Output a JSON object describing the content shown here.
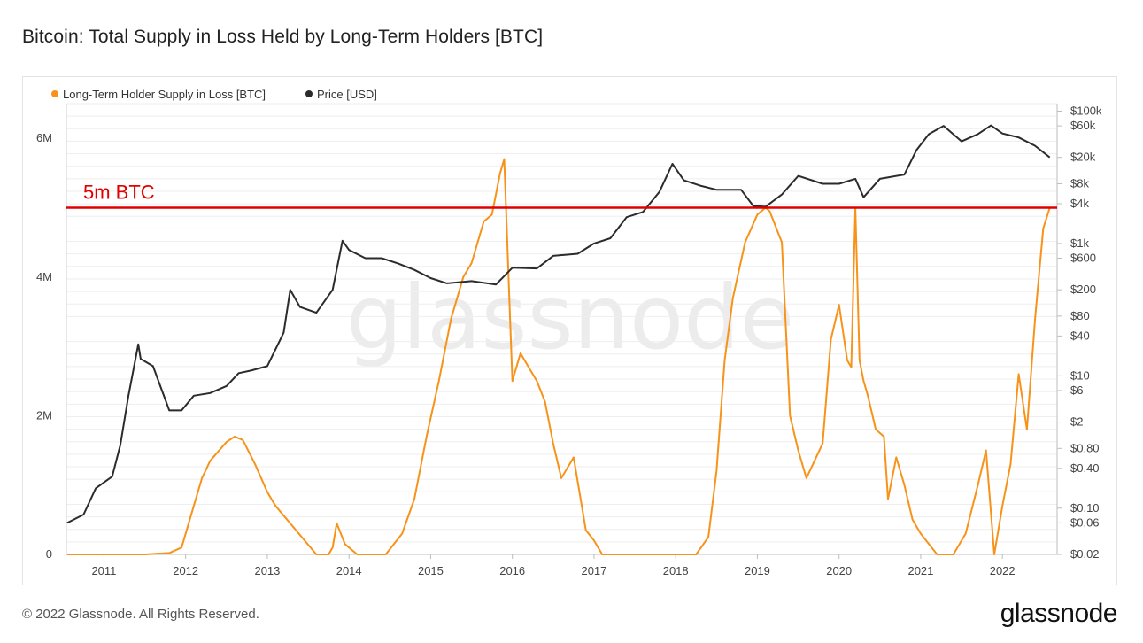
{
  "title": "Bitcoin: Total Supply in Loss Held by Long-Term Holders [BTC]",
  "footer": "© 2022 Glassnode. All Rights Reserved.",
  "brand": "glassnode",
  "watermark": "glassnode",
  "colors": {
    "supply": "#f7931a",
    "price": "#2b2b2b",
    "threshold": "#e00000",
    "grid": "#eeeeee"
  },
  "chart_data": {
    "type": "line",
    "title": "Bitcoin: Total Supply in Loss Held by Long-Term Holders [BTC]",
    "legend": [
      {
        "name": "Long-Term Holder Supply in Loss [BTC]",
        "color": "#f7931a"
      },
      {
        "name": "Price [USD]",
        "color": "#2b2b2b"
      }
    ],
    "legend_position": "top-left",
    "grid": true,
    "x_ticks": [
      "2011",
      "2012",
      "2013",
      "2014",
      "2015",
      "2016",
      "2017",
      "2018",
      "2019",
      "2020",
      "2021",
      "2022"
    ],
    "xlim": [
      "2010-07-17",
      "2022-08-31"
    ],
    "y_left": {
      "ticks": [
        "0",
        "2M",
        "4M",
        "6M"
      ],
      "ylim": [
        0,
        6500000
      ]
    },
    "y_right": {
      "scale": "log",
      "ticks": [
        "$100k",
        "$60k",
        "$20k",
        "$8k",
        "$4k",
        "$1k",
        "$600",
        "$200",
        "$80",
        "$40",
        "$10",
        "$6",
        "$2",
        "$0.80",
        "$0.40",
        "$0.10",
        "$0.06",
        "$0.02"
      ],
      "ylim": [
        0.02,
        130000
      ]
    },
    "annotation": {
      "label": "5m BTC",
      "y": 5000000
    },
    "series": [
      {
        "name": "Long-Term Holder Supply in Loss [BTC]",
        "axis": "left",
        "x": [
          2010.55,
          2011.5,
          2011.8,
          2011.95,
          2012.05,
          2012.2,
          2012.3,
          2012.5,
          2012.6,
          2012.7,
          2012.85,
          2013.0,
          2013.05,
          2013.1,
          2013.6,
          2013.75,
          2013.8,
          2013.85,
          2013.95,
          2014.1,
          2014.3,
          2014.45,
          2014.65,
          2014.8,
          2014.95,
          2015.1,
          2015.25,
          2015.4,
          2015.5,
          2015.6,
          2015.65,
          2015.75,
          2015.85,
          2015.9,
          2016.0,
          2016.1,
          2016.2,
          2016.3,
          2016.4,
          2016.5,
          2016.6,
          2016.75,
          2016.9,
          2017.0,
          2017.05,
          2017.1,
          2017.5,
          2017.9,
          2018.1,
          2018.25,
          2018.4,
          2018.5,
          2018.6,
          2018.7,
          2018.85,
          2019.0,
          2019.1,
          2019.15,
          2019.3,
          2019.4,
          2019.5,
          2019.6,
          2019.8,
          2019.9,
          2020.0,
          2020.1,
          2020.15,
          2020.2,
          2020.25,
          2020.3,
          2020.35,
          2020.45,
          2020.55,
          2020.6,
          2020.7,
          2020.8,
          2020.9,
          2021.0,
          2021.2,
          2021.4,
          2021.55,
          2021.7,
          2021.8,
          2021.9,
          2022.0,
          2022.1,
          2022.2,
          2022.3,
          2022.4,
          2022.5,
          2022.58
        ],
        "y": [
          0,
          0,
          20000,
          100000,
          500000,
          1100000,
          1350000,
          1620000,
          1700000,
          1650000,
          1300000,
          900000,
          800000,
          700000,
          0,
          0,
          100000,
          450000,
          150000,
          0,
          0,
          0,
          300000,
          800000,
          1700000,
          2500000,
          3400000,
          4000000,
          4200000,
          4600000,
          4800000,
          4900000,
          5500000,
          5700000,
          2500000,
          2900000,
          2700000,
          2500000,
          2200000,
          1600000,
          1100000,
          1400000,
          350000,
          200000,
          100000,
          0,
          0,
          0,
          0,
          0,
          250000,
          1200000,
          2800000,
          3700000,
          4500000,
          4900000,
          5000000,
          4950000,
          4500000,
          2000000,
          1500000,
          1100000,
          1600000,
          3100000,
          3600000,
          2800000,
          2700000,
          5000000,
          2800000,
          2500000,
          2300000,
          1800000,
          1700000,
          800000,
          1400000,
          1000000,
          500000,
          300000,
          0,
          0,
          300000,
          1000000,
          1500000,
          0,
          700000,
          1300000,
          2600000,
          1800000,
          3400000,
          4700000,
          5000000
        ]
      },
      {
        "name": "Price [USD]",
        "axis": "right",
        "x": [
          2010.55,
          2010.75,
          2010.9,
          2011.1,
          2011.2,
          2011.3,
          2011.42,
          2011.45,
          2011.6,
          2011.8,
          2011.95,
          2012.1,
          2012.3,
          2012.5,
          2012.65,
          2012.8,
          2013.0,
          2013.2,
          2013.28,
          2013.4,
          2013.6,
          2013.8,
          2013.92,
          2014.0,
          2014.2,
          2014.4,
          2014.6,
          2014.8,
          2015.0,
          2015.2,
          2015.5,
          2015.8,
          2016.0,
          2016.3,
          2016.5,
          2016.8,
          2017.0,
          2017.2,
          2017.4,
          2017.6,
          2017.8,
          2017.96,
          2018.1,
          2018.3,
          2018.5,
          2018.8,
          2018.95,
          2019.1,
          2019.3,
          2019.5,
          2019.8,
          2020.0,
          2020.2,
          2020.3,
          2020.5,
          2020.8,
          2020.95,
          2021.1,
          2021.28,
          2021.5,
          2021.7,
          2021.86,
          2022.0,
          2022.2,
          2022.4,
          2022.58
        ],
        "y": [
          0.06,
          0.08,
          0.2,
          0.3,
          0.9,
          5,
          30,
          18,
          14,
          3,
          3,
          5,
          5.5,
          7,
          11,
          12,
          14,
          45,
          200,
          110,
          90,
          200,
          1100,
          800,
          600,
          600,
          500,
          400,
          300,
          250,
          270,
          240,
          430,
          420,
          650,
          700,
          1000,
          1200,
          2500,
          3000,
          6000,
          16000,
          9000,
          7500,
          6500,
          6500,
          3700,
          3600,
          5500,
          10500,
          8000,
          8000,
          9500,
          5000,
          9500,
          11000,
          26000,
          45000,
          60000,
          35000,
          45000,
          61000,
          46000,
          40000,
          30000,
          20000
        ]
      }
    ]
  }
}
